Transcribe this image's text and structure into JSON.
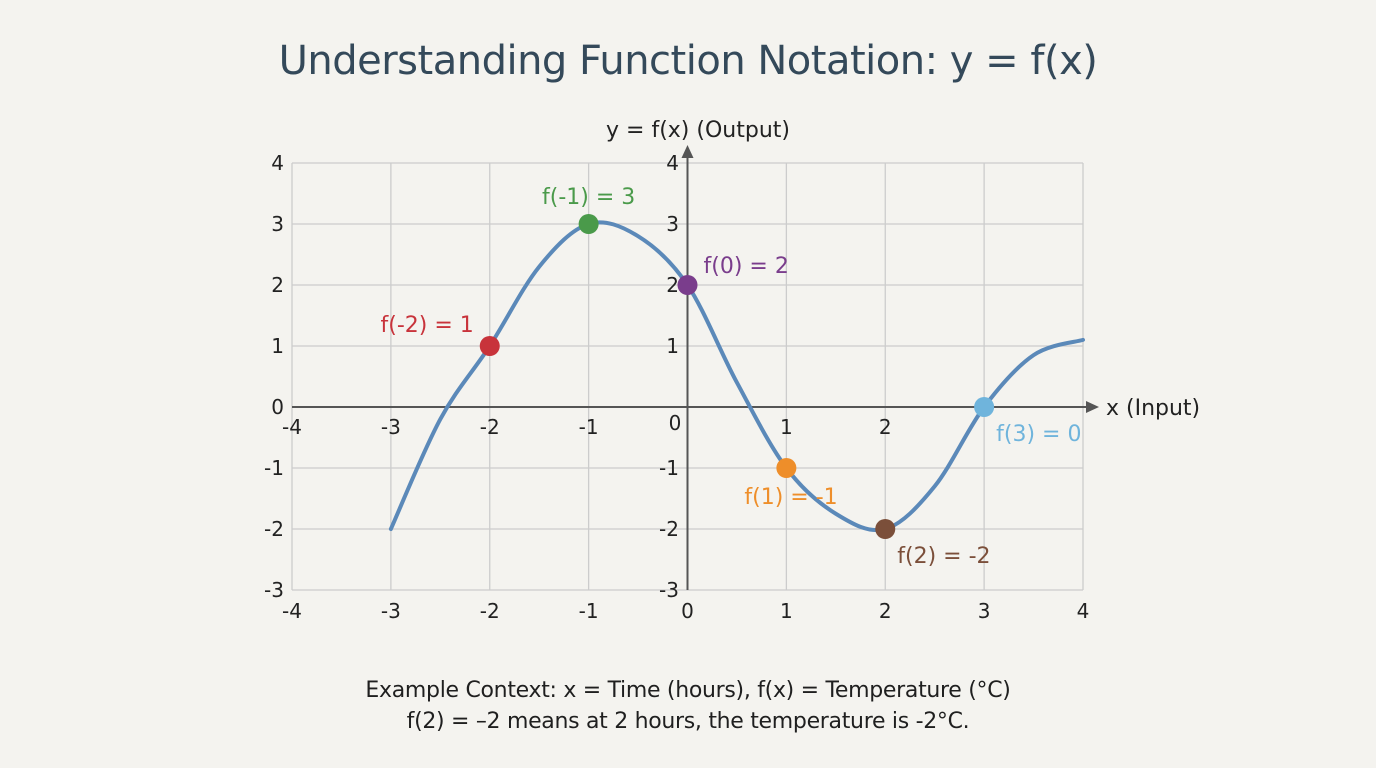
{
  "title": "Understanding Function Notation: y = f(x)",
  "caption": {
    "line1": "Example Context: x = Time (hours), f(x) = Temperature (°C)",
    "line2": "f(2) = –2 means at 2 hours, the temperature is -2°C."
  },
  "colors": {
    "background": "#f4f3ef",
    "curve": "#5b89b9",
    "grid": "#cccccc",
    "axis": "#555555",
    "title": "#34495a"
  },
  "chart_data": {
    "type": "line",
    "title": "Understanding Function Notation: y = f(x)",
    "xlabel": "x (Input)",
    "ylabel": "y = f(x) (Output)",
    "xlim": [
      -4,
      4
    ],
    "ylim": [
      -3,
      4
    ],
    "grid": true,
    "x_ticks": [
      -4,
      -3,
      -2,
      -1,
      0,
      1,
      2,
      3,
      4
    ],
    "y_ticks": [
      -3,
      -2,
      -1,
      0,
      1,
      2,
      3,
      4
    ],
    "series": [
      {
        "name": "f(x)",
        "color": "#5b89b9",
        "x": [
          -3,
          -2.5,
          -2,
          -1.5,
          -1,
          -0.5,
          0,
          0.5,
          1,
          1.5,
          2,
          2.5,
          3,
          3.5,
          4
        ],
        "y": [
          -2,
          -0.2,
          1,
          2.3,
          3,
          2.8,
          2,
          0.4,
          -1,
          -1.75,
          -2,
          -1.3,
          0,
          0.85,
          1.1
        ]
      }
    ],
    "points": [
      {
        "x": -2,
        "y": 1,
        "label": "f(-2) = 1",
        "color": "#c8333b"
      },
      {
        "x": -1,
        "y": 3,
        "label": "f(-1) = 3",
        "color": "#4a9a4a"
      },
      {
        "x": 0,
        "y": 2,
        "label": "f(0) = 2",
        "color": "#7a3d8c"
      },
      {
        "x": 1,
        "y": -1,
        "label": "f(1) = -1",
        "color": "#ee8e2a"
      },
      {
        "x": 2,
        "y": -2,
        "label": "f(2) = -2",
        "color": "#7b4f3a"
      },
      {
        "x": 3,
        "y": 0,
        "label": "f(3) = 0",
        "color": "#6fb4dc"
      }
    ]
  }
}
